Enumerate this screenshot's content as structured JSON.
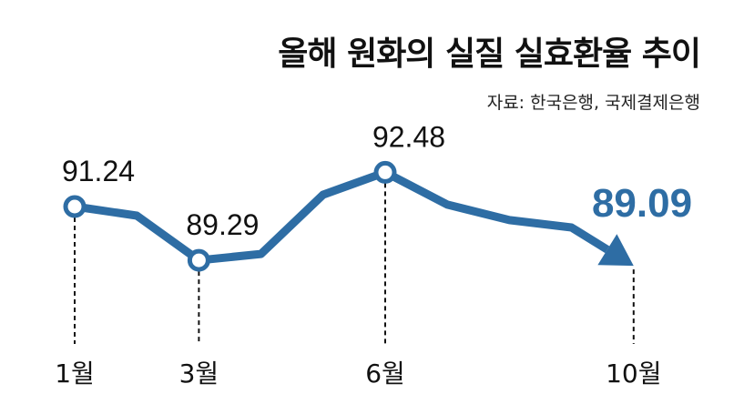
{
  "chart_data": {
    "type": "line",
    "title": "올해 원화의 실질 실효환율 추이",
    "source": "자료: 한국은행, 국제결제은행",
    "x": [
      1,
      2,
      3,
      4,
      5,
      6,
      7,
      8,
      9,
      10
    ],
    "values": [
      91.24,
      90.91,
      89.29,
      89.52,
      91.67,
      92.48,
      91.31,
      90.75,
      90.48,
      89.09
    ],
    "point_labels": [
      {
        "month": 1,
        "value": "91.24"
      },
      {
        "month": 3,
        "value": "89.29"
      },
      {
        "month": 6,
        "value": "92.48"
      },
      {
        "month": 10,
        "value": "89.09",
        "highlight": true
      }
    ],
    "tick_labels": [
      {
        "month": 1,
        "label": "1월"
      },
      {
        "month": 3,
        "label": "3월"
      },
      {
        "month": 6,
        "label": "6월"
      },
      {
        "month": 10,
        "label": "10월"
      }
    ],
    "xlabel": "",
    "ylabel": "",
    "ylim": [
      88,
      93.5
    ],
    "grid": false,
    "color": "#2e6da4"
  }
}
